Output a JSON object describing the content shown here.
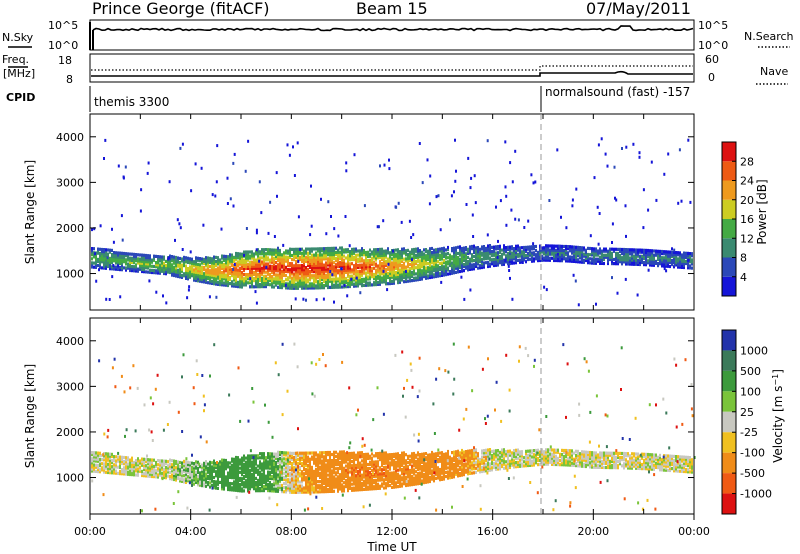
{
  "header": {
    "station": "Prince George (fitACF)",
    "beam": "Beam 15",
    "date": "07/May/2011"
  },
  "nsky_panel": {
    "left_label": "N.Sky",
    "left_ticks": [
      "10^5",
      "10^0"
    ],
    "right_ticks": [
      "10^5",
      "10^0"
    ],
    "right_label": "N.Search"
  },
  "freq_panel": {
    "left_label": "Freq.",
    "left_unit": "[MHz]",
    "left_ticks": [
      "18",
      "8"
    ],
    "right_ticks": [
      "60",
      "0"
    ],
    "right_label": "Nave"
  },
  "cpid_panel": {
    "label": "CPID",
    "modes": [
      {
        "name": "themis 3300",
        "start_hour": 0,
        "end_hour": 18
      },
      {
        "name": "normalsound (fast) -157",
        "start_hour": 18,
        "end_hour": 24
      }
    ]
  },
  "power_colorbar": {
    "label": "Power [dB]",
    "ticks": [
      "4",
      "8",
      "12",
      "16",
      "20",
      "24",
      "28"
    ],
    "colors": [
      "#1515d8",
      "#2b48b8",
      "#3a8a70",
      "#44aa44",
      "#cccc22",
      "#ee9a1e",
      "#ee5a14",
      "#dd1111"
    ]
  },
  "velocity_colorbar": {
    "label": "Velocity [m s^-1]",
    "ticks": [
      "1000",
      "500",
      "100",
      "25",
      "-25",
      "-100",
      "-500",
      "-1000"
    ],
    "colors": [
      "#2233aa",
      "#3b7a5a",
      "#3c9a3c",
      "#7ac43a",
      "#c8c8c0",
      "#f0c020",
      "#f08c18",
      "#f05a14",
      "#dd1111"
    ]
  },
  "chart_data": [
    {
      "type": "heatmap",
      "title": "",
      "quantity": "Power [dB]",
      "ylabel": "Slant Range [km]",
      "yticks": [
        "1000",
        "2000",
        "3000",
        "4000"
      ],
      "ylim": [
        200,
        4500
      ],
      "xlim_hours": [
        0,
        24
      ],
      "grid": false,
      "echo_bands": [
        {
          "x": [
            0,
            1,
            2,
            3,
            4,
            5,
            6,
            7,
            8,
            9,
            10,
            11,
            12,
            13,
            14,
            15,
            16,
            17,
            18,
            19,
            20,
            21,
            22,
            23,
            24
          ],
          "range_km": [
            1400,
            1330,
            1260,
            1230,
            1140,
            1100,
            1120,
            1170,
            1150,
            1160,
            1170,
            1180,
            1200,
            1240,
            1300,
            1380,
            1430,
            1460,
            1490,
            1470,
            1440,
            1420,
            1390,
            1360,
            1330
          ],
          "width_km": [
            220,
            200,
            180,
            200,
            240,
            300,
            380,
            420,
            440,
            440,
            430,
            400,
            380,
            340,
            300,
            260,
            220,
            180,
            160,
            160,
            180,
            170,
            160,
            170,
            180
          ],
          "peak_db": [
            14,
            15,
            16,
            17,
            20,
            24,
            28,
            29,
            30,
            30,
            29,
            27,
            24,
            20,
            16,
            13,
            11,
            10,
            9,
            9,
            10,
            11,
            10,
            10,
            10
          ]
        }
      ]
    },
    {
      "type": "heatmap",
      "title": "",
      "quantity": "Velocity [m s^-1]",
      "ylabel": "Slant Range [km]",
      "yticks": [
        "1000",
        "2000",
        "3000",
        "4000"
      ],
      "ylim": [
        200,
        4500
      ],
      "xlim_hours": [
        0,
        24
      ],
      "grid": false,
      "echo_bands": [
        {
          "x": [
            0,
            1,
            2,
            3,
            4,
            5,
            6,
            7,
            8,
            9,
            10,
            11,
            12,
            13,
            14,
            15,
            16,
            17,
            18,
            19,
            20,
            21,
            22,
            23,
            24
          ],
          "range_km": [
            1400,
            1330,
            1260,
            1230,
            1140,
            1100,
            1120,
            1170,
            1150,
            1160,
            1170,
            1180,
            1200,
            1240,
            1300,
            1380,
            1430,
            1460,
            1490,
            1470,
            1440,
            1420,
            1390,
            1360,
            1330
          ],
          "width_km": [
            220,
            200,
            180,
            200,
            240,
            300,
            380,
            420,
            440,
            440,
            430,
            400,
            380,
            340,
            300,
            260,
            220,
            180,
            160,
            160,
            180,
            170,
            160,
            170,
            180
          ],
          "velocity": [
            0,
            0,
            0,
            0,
            50,
            150,
            200,
            150,
            -50,
            -150,
            -250,
            -300,
            -300,
            -250,
            -200,
            -100,
            0,
            0,
            0,
            0,
            0,
            0,
            0,
            0,
            0
          ]
        }
      ]
    }
  ],
  "x_axis": {
    "ticks": [
      "00:00",
      "04:00",
      "08:00",
      "12:00",
      "16:00",
      "20:00",
      "00:00"
    ],
    "label": "Time UT"
  }
}
